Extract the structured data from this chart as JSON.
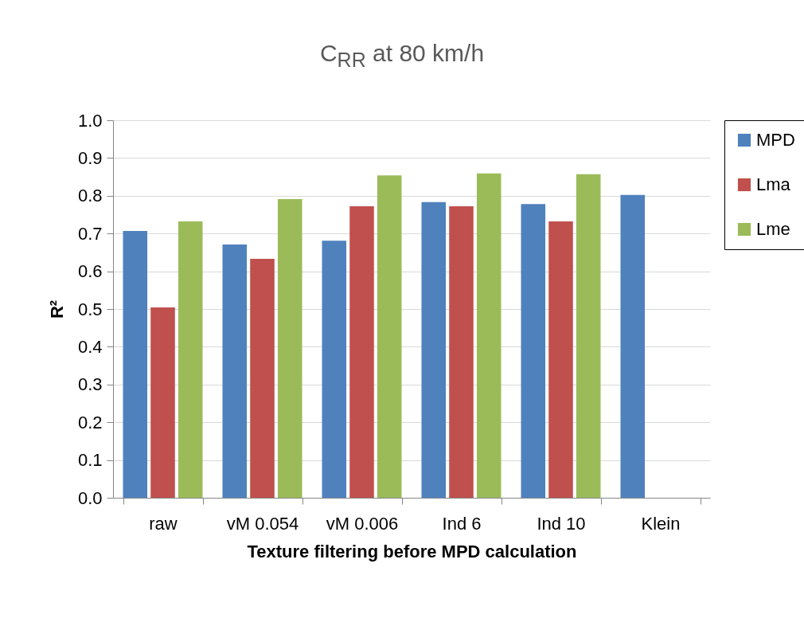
{
  "chart_data": {
    "type": "bar",
    "title": "C$_{RR}$ at 80 km/h",
    "xlabel": "Texture filtering before MPD calculation",
    "ylabel": "R²",
    "categories": [
      "raw",
      "vM 0.054",
      "vM 0.006",
      "Ind 6",
      "Ind 10",
      "Klein"
    ],
    "series": [
      {
        "name": "MPD",
        "color": "#4f81bd",
        "values": [
          0.707,
          0.671,
          0.681,
          0.783,
          0.778,
          0.802
        ]
      },
      {
        "name": "Lma",
        "color": "#c0504d",
        "values": [
          0.504,
          0.633,
          0.772,
          0.772,
          0.732,
          null
        ]
      },
      {
        "name": "Lme",
        "color": "#9bbb59",
        "values": [
          0.732,
          0.791,
          0.854,
          0.859,
          0.857,
          null
        ]
      }
    ],
    "ylim": [
      0,
      1
    ],
    "yticks": [
      {
        "value": 0,
        "label": "0.0"
      },
      {
        "value": 0.1,
        "label": "0.1"
      },
      {
        "value": 0.2,
        "label": "0.2"
      },
      {
        "value": 0.3,
        "label": "0.3"
      },
      {
        "value": 0.4,
        "label": "0.4"
      },
      {
        "value": 0.5,
        "label": "0.5"
      },
      {
        "value": 0.6,
        "label": "0.6"
      },
      {
        "value": 0.7,
        "label": "0.7"
      },
      {
        "value": 0.8,
        "label": "0.8"
      },
      {
        "value": 0.9,
        "label": "0.9"
      },
      {
        "value": 1,
        "label": "1.0"
      }
    ],
    "grid": "y",
    "legend": "right"
  }
}
